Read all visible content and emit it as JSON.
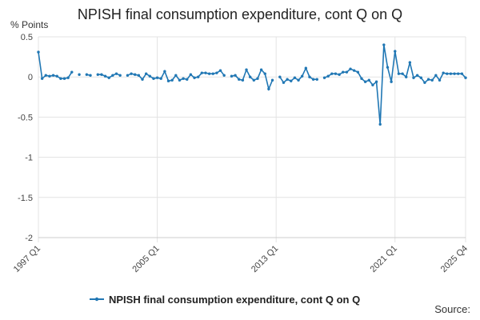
{
  "chart_data": {
    "type": "line",
    "title": "NPISH final consumption expenditure, cont Q on Q",
    "ylabel": "% Points",
    "xlabel": "",
    "ylim": [
      -2,
      0.5
    ],
    "yticks": [
      0.5,
      0,
      -0.5,
      -1,
      -1.5,
      -2
    ],
    "ytick_labels": [
      "0.5",
      "0",
      "-0.5",
      "-1",
      "-1.5",
      "-2"
    ],
    "xtick_labels": [
      "1997 Q1",
      "2005 Q1",
      "2013 Q1",
      "2021 Q1",
      "2025 Q4"
    ],
    "xtick_index": [
      0,
      32,
      64,
      96,
      115
    ],
    "x_start": "1997 Q1",
    "x_end": "2025 Q4",
    "grid": true,
    "legend_position": "bottom",
    "color": "#2077b4",
    "series": [
      {
        "name": "NPISH final consumption expenditure, cont Q on Q",
        "values": [
          0.31,
          -0.02,
          0.02,
          0.01,
          0.02,
          0.01,
          -0.02,
          -0.02,
          -0.01,
          0.06,
          null,
          0.03,
          null,
          0.03,
          0.02,
          null,
          0.03,
          0.03,
          0.01,
          -0.01,
          0.02,
          0.04,
          0.02,
          null,
          0.02,
          0.04,
          0.03,
          0.02,
          -0.03,
          0.04,
          0.01,
          -0.02,
          -0.01,
          -0.02,
          0.07,
          -0.05,
          -0.04,
          0.02,
          -0.04,
          -0.02,
          -0.03,
          0.03,
          -0.01,
          0.0,
          0.05,
          0.05,
          0.04,
          0.04,
          0.05,
          0.08,
          0.02,
          null,
          0.01,
          0.02,
          -0.03,
          -0.04,
          0.09,
          0.0,
          -0.04,
          -0.02,
          0.09,
          0.04,
          -0.15,
          -0.04,
          null,
          0.0,
          -0.07,
          -0.03,
          -0.05,
          -0.01,
          -0.04,
          0.01,
          0.11,
          0.0,
          -0.03,
          -0.03,
          null,
          -0.01,
          0.01,
          0.04,
          0.04,
          0.03,
          0.06,
          0.06,
          0.1,
          0.08,
          0.06,
          -0.02,
          -0.06,
          -0.04,
          -0.1,
          -0.06,
          -0.59,
          0.4,
          0.12,
          -0.06,
          0.32,
          0.04,
          0.04,
          0.0,
          0.18,
          -0.01,
          0.02,
          -0.01,
          -0.07,
          -0.03,
          -0.04,
          0.02,
          -0.04,
          0.05,
          0.04,
          0.04,
          0.04,
          0.04,
          0.04,
          -0.01
        ]
      }
    ]
  },
  "source_label": "Source:"
}
